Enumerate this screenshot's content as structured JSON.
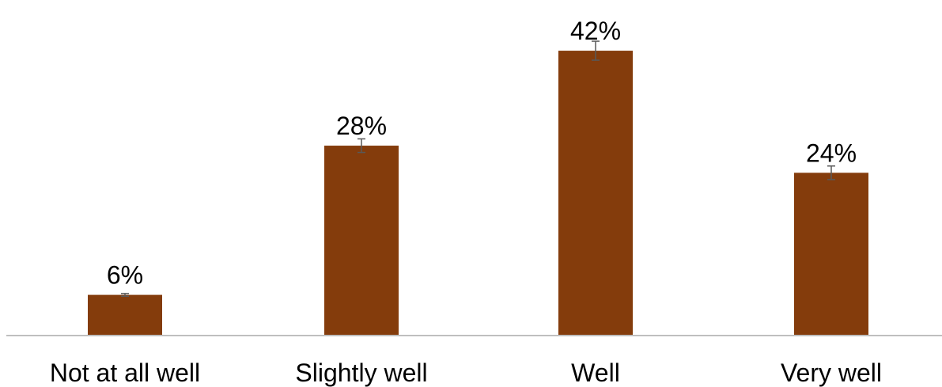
{
  "chart_data": {
    "type": "bar",
    "categories": [
      "Not at all well",
      "Slightly well",
      "Well",
      "Very well"
    ],
    "values": [
      6,
      28,
      42,
      24
    ],
    "value_labels": [
      "6%",
      "28%",
      "42%",
      "24%"
    ],
    "error_bars": [
      0.2,
      1.0,
      1.4,
      1.0
    ],
    "ylim": [
      0,
      45
    ],
    "bar_color": "#843C0C",
    "axis_color": "#BFBFBF",
    "error_bar_color": "#595959",
    "grid": false,
    "title": "",
    "xlabel": "",
    "ylabel": ""
  }
}
